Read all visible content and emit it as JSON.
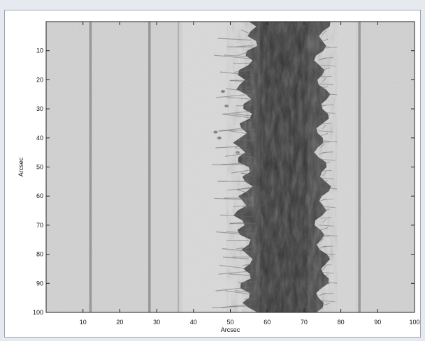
{
  "chart_data": {
    "type": "heatmap",
    "title": "",
    "xlabel": "Arcsec",
    "ylabel": "Arcsec",
    "xlim": [
      0,
      100
    ],
    "ylim": [
      100,
      0
    ],
    "xticks": [
      10,
      20,
      30,
      40,
      50,
      60,
      70,
      80,
      90,
      100
    ],
    "yticks": [
      10,
      20,
      30,
      40,
      50,
      60,
      70,
      80,
      90,
      100
    ],
    "grid": false,
    "colormap": "grayscale",
    "features": {
      "dark_band_x_range": [
        55,
        75
      ],
      "vertical_lines_x": [
        12,
        28,
        36,
        85
      ]
    }
  },
  "colors": {
    "background": "#e6e9ef",
    "frame": "#ffffff",
    "image_light": "#d2d2d2",
    "image_dark": "#1c1c1c"
  }
}
